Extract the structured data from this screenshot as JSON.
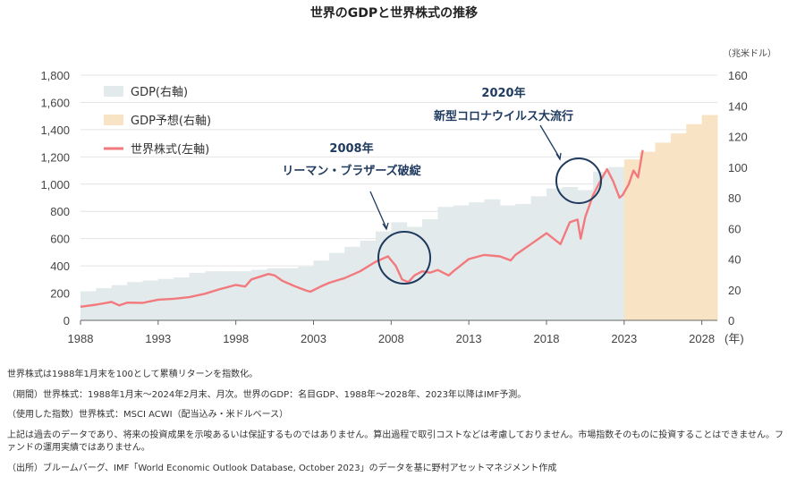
{
  "chart_data": {
    "type": "line",
    "title": "世界のGDPと世界株式の推移",
    "right_unit": "（兆米ドル）",
    "x_unit": "(年)",
    "x_ticks": [
      1988,
      1993,
      1998,
      2003,
      2008,
      2013,
      2018,
      2023,
      2028
    ],
    "y_left_ticks": [
      "0",
      "200",
      "400",
      "600",
      "800",
      "1,000",
      "1,200",
      "1,400",
      "1,600",
      "1,800"
    ],
    "y_left_range": [
      0,
      1800
    ],
    "y_right_ticks": [
      "0",
      "20",
      "40",
      "60",
      "80",
      "100",
      "120",
      "140",
      "160"
    ],
    "y_right_range": [
      0,
      160
    ],
    "grid": true,
    "legend_position": "top-left",
    "legend": [
      "GDP(右軸)",
      "GDP予想(右軸)",
      "世界株式(左軸)"
    ],
    "colors": {
      "gdp": "#e3eaec",
      "gdp_forecast": "#f8e4c4",
      "stock": "#f27a7e",
      "annotation": "#1f3a5f"
    },
    "gdp_actual": {
      "years": [
        1988,
        1989,
        1990,
        1991,
        1992,
        1993,
        1994,
        1995,
        1996,
        1997,
        1998,
        1999,
        2000,
        2001,
        2002,
        2003,
        2004,
        2005,
        2006,
        2007,
        2008,
        2009,
        2010,
        2011,
        2012,
        2013,
        2014,
        2015,
        2016,
        2017,
        2018,
        2019,
        2020,
        2021,
        2022
      ],
      "values": [
        19,
        21,
        23,
        25,
        26,
        27,
        28,
        31,
        32,
        32,
        32,
        33,
        34,
        34,
        35,
        39,
        44,
        48,
        52,
        58,
        64,
        61,
        66,
        74,
        75,
        77,
        79,
        75,
        76,
        81,
        86,
        87,
        85,
        97,
        100
      ]
    },
    "gdp_forecast": {
      "years": [
        2023,
        2024,
        2025,
        2026,
        2027,
        2028
      ],
      "values": [
        105,
        110,
        116,
        122,
        128,
        134
      ]
    },
    "stock": {
      "years": [
        1988,
        1989,
        1990,
        1990.5,
        1991,
        1992,
        1993,
        1994,
        1995,
        1996,
        1997,
        1998,
        1998.6,
        1999,
        2000.1,
        2000.5,
        2001,
        2001.8,
        2002.5,
        2002.8,
        2003.5,
        2004,
        2005,
        2006,
        2007,
        2007.8,
        2008.3,
        2008.7,
        2009.1,
        2009.5,
        2010,
        2010.5,
        2011,
        2011.7,
        2012,
        2013,
        2014,
        2015,
        2015.7,
        2016,
        2017,
        2018,
        2018.9,
        2019.5,
        2020,
        2020.2,
        2020.5,
        2021,
        2021.5,
        2021.9,
        2022.3,
        2022.7,
        2022.9,
        2023.3,
        2023.6,
        2023.9,
        2024.2
      ],
      "values": [
        100,
        115,
        135,
        110,
        130,
        128,
        152,
        158,
        170,
        195,
        230,
        260,
        248,
        300,
        340,
        330,
        290,
        250,
        220,
        210,
        250,
        275,
        310,
        360,
        430,
        470,
        400,
        300,
        280,
        330,
        360,
        350,
        370,
        330,
        360,
        450,
        480,
        470,
        440,
        480,
        560,
        640,
        560,
        720,
        740,
        600,
        760,
        920,
        1030,
        1110,
        1020,
        900,
        920,
        1000,
        1100,
        1050,
        1250
      ]
    },
    "annotations": [
      {
        "year": "2008年",
        "text": "リーマン・ブラザーズ破綻"
      },
      {
        "year": "2020年",
        "text": "新型コロナウイルス大流行"
      }
    ]
  },
  "notes": [
    "世界株式は1988年1月末を100として累積リターンを指数化。",
    "（期間）世界株式：1988年1月末～2024年2月末、月次。世界のGDP：名目GDP、1988年～2028年、2023年以降はIMF予測。",
    "（使用した指数）世界株式：MSCI ACWI（配当込み・米ドルベース）",
    "上記は過去のデータであり、将来の投資成果を示唆あるいは保証するものではありません。算出過程で取引コストなどは考慮しておりません。市場指数そのものに投資することはできません。ファンドの運用実績ではありません。",
    "（出所）ブルームバーグ、IMF「World Economic Outlook Database, October 2023」のデータを基に野村アセットマネジメント作成"
  ]
}
